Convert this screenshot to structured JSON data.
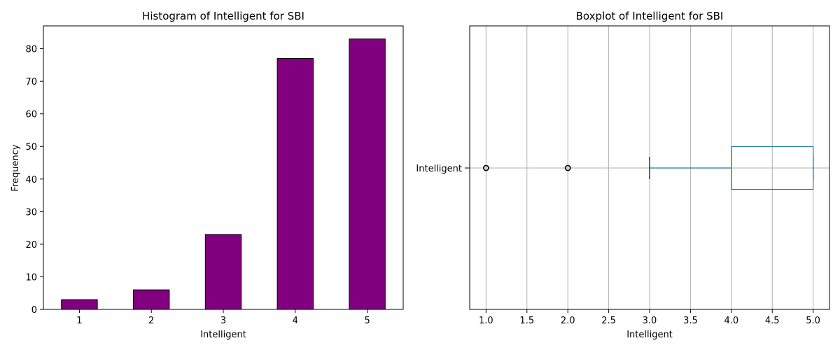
{
  "chart_data": [
    {
      "type": "bar",
      "title": "Histogram of Intelligent for SBI",
      "xlabel": "Intelligent",
      "ylabel": "Frequency",
      "categories": [
        "1",
        "2",
        "3",
        "4",
        "5"
      ],
      "values": [
        3,
        6,
        23,
        77,
        83
      ],
      "ylim": [
        0,
        87
      ],
      "yticks": [
        0,
        10,
        20,
        30,
        40,
        50,
        60,
        70,
        80
      ],
      "bar_color": "#800080",
      "edge_color": "#000000",
      "grid": false
    },
    {
      "type": "boxplot",
      "title": "Boxplot of Intelligent for SBI",
      "xlabel": "Intelligent",
      "ylabel": "",
      "category": "Intelligent",
      "orientation": "horizontal",
      "xlim": [
        0.8,
        5.2
      ],
      "xticks": [
        "1.0",
        "1.5",
        "2.0",
        "2.5",
        "3.0",
        "3.5",
        "4.0",
        "4.5",
        "5.0"
      ],
      "whisker_low": 3,
      "q1": 4,
      "median": 4,
      "q3": 5,
      "whisker_high": 5,
      "outliers": [
        1,
        2
      ],
      "grid": true,
      "box_color": "#1f77b4",
      "median_color": "#2ca02c",
      "whisker_color": "#1f77b4",
      "cap_color": "#000000"
    }
  ]
}
